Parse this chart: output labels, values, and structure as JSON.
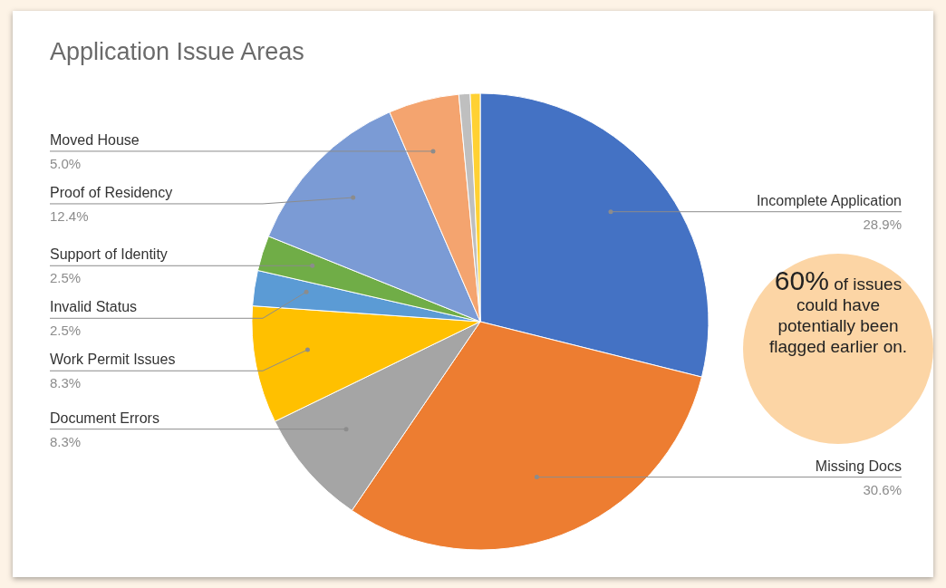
{
  "chart_data": {
    "type": "pie",
    "title": "Application Issue Areas",
    "categories": [
      "Incomplete Application",
      "Missing Docs",
      "Document Errors",
      "Work Permit Issues",
      "Invalid Status",
      "Support of Identity",
      "Proof of Residency",
      "Moved House",
      null,
      null
    ],
    "values": [
      28.9,
      30.6,
      8.3,
      8.3,
      2.5,
      2.5,
      12.4,
      5.0,
      0.8,
      0.7
    ],
    "value_labels": [
      "28.9%",
      "30.6%",
      "8.3%",
      "8.3%",
      "2.5%",
      "2.5%",
      "12.4%",
      "5.0%",
      null,
      null
    ],
    "colors": [
      "#4472c4",
      "#ed7d31",
      "#a5a5a5",
      "#ffc000",
      "#5b9bd5",
      "#70ad47",
      "#7b9bd5",
      "#f4a46f",
      "#bfbfbf",
      "#ffd133"
    ],
    "legend": false,
    "annotations": [
      "60% of issues could have potentially been flagged earlier on."
    ]
  }
}
